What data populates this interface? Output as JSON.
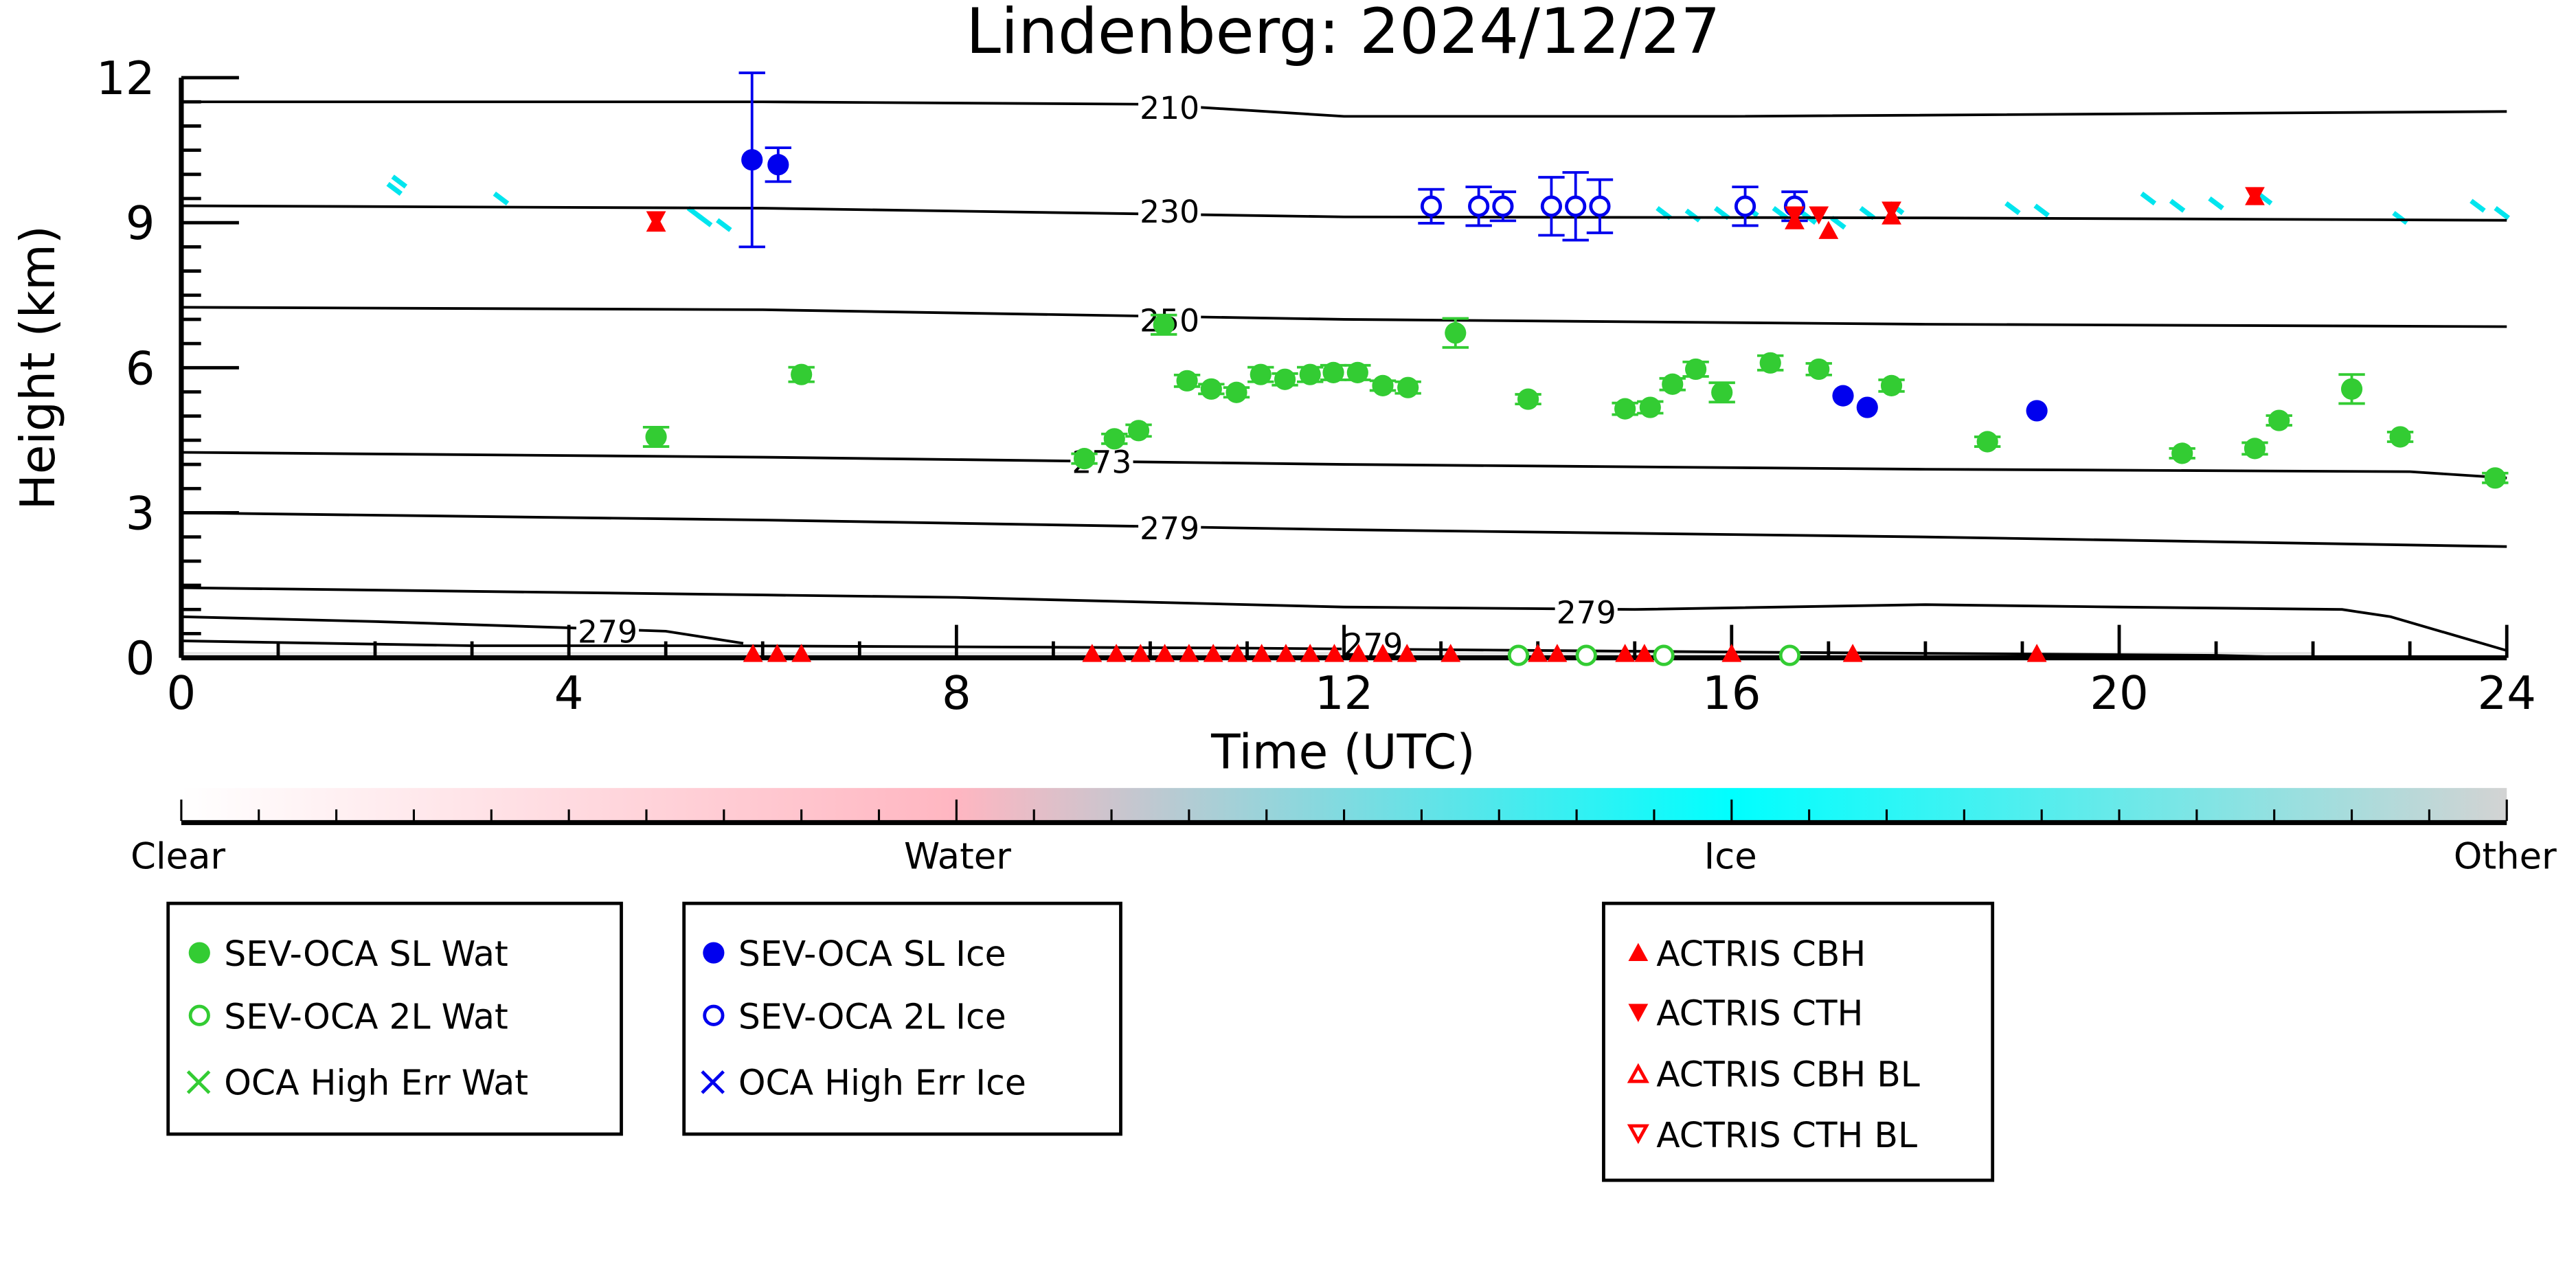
{
  "chart_data": {
    "type": "scatter",
    "title": "Lindenberg: 2024/12/27",
    "xlabel": "Time (UTC)",
    "ylabel": "Height (km)",
    "xlim": [
      0,
      24
    ],
    "ylim": [
      0,
      12
    ],
    "xticks": [
      "0",
      "4",
      "8",
      "12",
      "16",
      "20",
      "24"
    ],
    "yticks": [
      "0",
      "3",
      "6",
      "9",
      "12"
    ],
    "colorbar": {
      "labels": [
        "Clear",
        "Water",
        "Ice",
        "Other"
      ],
      "colors": [
        "#ffffff",
        "#ffb6c1",
        "#00ffff",
        "#d3d3d3"
      ]
    },
    "contours": [
      {
        "label": "210",
        "label_at": [
          10.2,
          11.39
        ],
        "points": [
          [
            0,
            11.5
          ],
          [
            6,
            11.5
          ],
          [
            10,
            11.45
          ],
          [
            12,
            11.2
          ],
          [
            16,
            11.2
          ],
          [
            24,
            11.3
          ]
        ]
      },
      {
        "label": "230",
        "label_at": [
          10.2,
          9.24
        ],
        "points": [
          [
            0,
            9.35
          ],
          [
            6,
            9.3
          ],
          [
            12,
            9.12
          ],
          [
            18,
            9.1
          ],
          [
            24,
            9.05
          ]
        ]
      },
      {
        "label": "250",
        "label_at": [
          10.2,
          6.99
        ],
        "points": [
          [
            0,
            7.25
          ],
          [
            6,
            7.2
          ],
          [
            12,
            7.0
          ],
          [
            18,
            6.9
          ],
          [
            24,
            6.85
          ]
        ]
      },
      {
        "label": "273",
        "label_at": [
          9.5,
          4.06
        ],
        "points": [
          [
            0,
            4.25
          ],
          [
            6,
            4.15
          ],
          [
            12,
            4.0
          ],
          [
            18,
            3.9
          ],
          [
            23,
            3.85
          ],
          [
            24,
            3.72
          ]
        ]
      },
      {
        "label": "279",
        "label_at": [
          10.2,
          2.69
        ],
        "points": [
          [
            0,
            3.0
          ],
          [
            6,
            2.85
          ],
          [
            12,
            2.65
          ],
          [
            18,
            2.5
          ],
          [
            24,
            2.3
          ]
        ]
      },
      {
        "label": "279",
        "label_at": [
          14.5,
          0.95
        ],
        "points": [
          [
            0,
            1.45
          ],
          [
            4,
            1.35
          ],
          [
            6,
            1.3
          ],
          [
            8,
            1.25
          ],
          [
            12,
            1.05
          ],
          [
            15,
            1.0
          ],
          [
            18,
            1.1
          ],
          [
            20,
            1.05
          ],
          [
            22.3,
            1.0
          ],
          [
            22.8,
            0.85
          ],
          [
            23.4,
            0.5
          ],
          [
            24,
            0.15
          ]
        ]
      },
      {
        "label": "279",
        "label_at": [
          4.4,
          0.55
        ],
        "points": [
          [
            0,
            0.85
          ],
          [
            2,
            0.75
          ],
          [
            4,
            0.62
          ],
          [
            5,
            0.55
          ],
          [
            5.8,
            0.3
          ]
        ]
      },
      {
        "label": "279",
        "label_at": [
          12.3,
          0.28
        ],
        "points": [
          [
            0,
            0.35
          ],
          [
            3,
            0.25
          ],
          [
            5.5,
            0.25
          ],
          [
            11,
            0.2
          ],
          [
            16,
            0.12
          ],
          [
            21,
            0.05
          ],
          [
            22,
            0.0
          ]
        ]
      }
    ],
    "ice_pixels": [
      [
        2.2,
        9.7
      ],
      [
        2.25,
        9.85
      ],
      [
        3.3,
        9.5
      ],
      [
        5.3,
        9.2
      ],
      [
        5.4,
        9.05
      ],
      [
        5.6,
        8.95
      ],
      [
        15.3,
        9.2
      ],
      [
        15.6,
        9.15
      ],
      [
        15.9,
        9.2
      ],
      [
        16.2,
        9.25
      ],
      [
        16.5,
        9.2
      ],
      [
        16.8,
        9.1
      ],
      [
        17.1,
        9.0
      ],
      [
        17.4,
        9.2
      ],
      [
        17.7,
        9.3
      ],
      [
        18.9,
        9.3
      ],
      [
        19.2,
        9.25
      ],
      [
        20.3,
        9.5
      ],
      [
        20.6,
        9.35
      ],
      [
        21.0,
        9.4
      ],
      [
        21.5,
        9.5
      ],
      [
        22.9,
        9.1
      ],
      [
        23.7,
        9.35
      ],
      [
        23.95,
        9.2
      ]
    ],
    "series": [
      {
        "name": "SEV-OCA SL Wat",
        "marker": "filled-circle",
        "color": "#33cc33",
        "points": [
          [
            4.9,
            4.57,
            0.2
          ],
          [
            6.4,
            5.86,
            0.15
          ],
          [
            9.32,
            4.12,
            0.1
          ],
          [
            9.63,
            4.53,
            0.1
          ],
          [
            9.88,
            4.7,
            0.12
          ],
          [
            10.14,
            6.89,
            0.2
          ],
          [
            10.38,
            5.73,
            0.12
          ],
          [
            10.63,
            5.56,
            0.1
          ],
          [
            10.89,
            5.49,
            0.1
          ],
          [
            11.14,
            5.86,
            0.15
          ],
          [
            11.39,
            5.76,
            0.12
          ],
          [
            11.65,
            5.86,
            0.15
          ],
          [
            11.89,
            5.9,
            0.15
          ],
          [
            12.14,
            5.9,
            0.15
          ],
          [
            12.4,
            5.63,
            0.1
          ],
          [
            12.66,
            5.59,
            0.12
          ],
          [
            13.15,
            6.72,
            0.3
          ],
          [
            13.9,
            5.35,
            0.1
          ],
          [
            14.9,
            5.15,
            0.12
          ],
          [
            15.16,
            5.18,
            0.12
          ],
          [
            15.39,
            5.66,
            0.12
          ],
          [
            15.63,
            5.97,
            0.15
          ],
          [
            15.9,
            5.49,
            0.2
          ],
          [
            16.4,
            6.1,
            0.15
          ],
          [
            16.9,
            5.97,
            0.12
          ],
          [
            17.65,
            5.63,
            0.12
          ],
          [
            18.64,
            4.47,
            0.1
          ],
          [
            20.65,
            4.23,
            0.1
          ],
          [
            21.4,
            4.33,
            0.12
          ],
          [
            21.65,
            4.91,
            0.1
          ],
          [
            22.4,
            5.56,
            0.3
          ],
          [
            22.9,
            4.57,
            0.1
          ],
          [
            23.88,
            3.72,
            0.1
          ]
        ]
      },
      {
        "name": "SEV-OCA 2L Wat",
        "marker": "open-circle",
        "color": "#33cc33",
        "points": [
          [
            13.8,
            0.05,
            0
          ],
          [
            14.5,
            0.05,
            0
          ],
          [
            15.3,
            0.05,
            0
          ],
          [
            16.6,
            0.05,
            0
          ]
        ]
      },
      {
        "name": "OCA High Err Wat",
        "marker": "x",
        "color": "#33cc33",
        "points": []
      },
      {
        "name": "SEV-OCA SL Ice",
        "marker": "filled-circle",
        "color": "#0000ee",
        "points": [
          [
            5.89,
            10.3,
            1.8
          ],
          [
            6.16,
            10.2,
            0.35
          ],
          [
            17.15,
            5.42,
            0
          ],
          [
            17.4,
            5.18,
            0
          ],
          [
            19.15,
            5.11,
            0
          ]
        ]
      },
      {
        "name": "SEV-OCA 2L Ice",
        "marker": "open-circle",
        "color": "#0000ee",
        "points": [
          [
            12.9,
            9.34,
            0.35
          ],
          [
            13.39,
            9.34,
            0.4
          ],
          [
            13.64,
            9.34,
            0.3
          ],
          [
            14.14,
            9.34,
            0.6
          ],
          [
            14.39,
            9.34,
            0.7
          ],
          [
            14.64,
            9.34,
            0.55
          ],
          [
            16.14,
            9.34,
            0.4
          ],
          [
            16.65,
            9.34,
            0.3
          ]
        ]
      },
      {
        "name": "OCA High Err Ice",
        "marker": "x",
        "color": "#0000ee",
        "points": []
      },
      {
        "name": "ACTRIS CBH",
        "marker": "filled-triangle-up",
        "color": "#ff0000",
        "points": [
          [
            4.9,
            8.95
          ],
          [
            5.9,
            0.05
          ],
          [
            6.15,
            0.05
          ],
          [
            6.4,
            0.05
          ],
          [
            9.4,
            0.05
          ],
          [
            9.65,
            0.05
          ],
          [
            9.9,
            0.05
          ],
          [
            10.15,
            0.05
          ],
          [
            10.4,
            0.05
          ],
          [
            10.65,
            0.05
          ],
          [
            10.9,
            0.05
          ],
          [
            11.15,
            0.05
          ],
          [
            11.4,
            0.05
          ],
          [
            11.65,
            0.05
          ],
          [
            11.9,
            0.05
          ],
          [
            12.15,
            0.05
          ],
          [
            12.4,
            0.05
          ],
          [
            12.65,
            0.05
          ],
          [
            13.1,
            0.05
          ],
          [
            14.0,
            0.05
          ],
          [
            14.2,
            0.05
          ],
          [
            14.9,
            0.05
          ],
          [
            15.1,
            0.05
          ],
          [
            16.0,
            0.05
          ],
          [
            16.65,
            9.0
          ],
          [
            17.0,
            8.8
          ],
          [
            17.65,
            9.1
          ],
          [
            17.25,
            0.05
          ],
          [
            19.15,
            0.05
          ],
          [
            21.4,
            9.5
          ]
        ]
      },
      {
        "name": "ACTRIS CTH",
        "marker": "filled-triangle-down",
        "color": "#ff0000",
        "points": [
          [
            4.9,
            9.1
          ],
          [
            16.65,
            9.2
          ],
          [
            16.9,
            9.2
          ],
          [
            17.65,
            9.3
          ],
          [
            21.4,
            9.6
          ]
        ]
      },
      {
        "name": "ACTRIS CBH BL",
        "marker": "open-triangle-up",
        "color": "#ff0000",
        "points": []
      },
      {
        "name": "ACTRIS CTH BL",
        "marker": "open-triangle-down",
        "color": "#ff0000",
        "points": []
      }
    ]
  }
}
